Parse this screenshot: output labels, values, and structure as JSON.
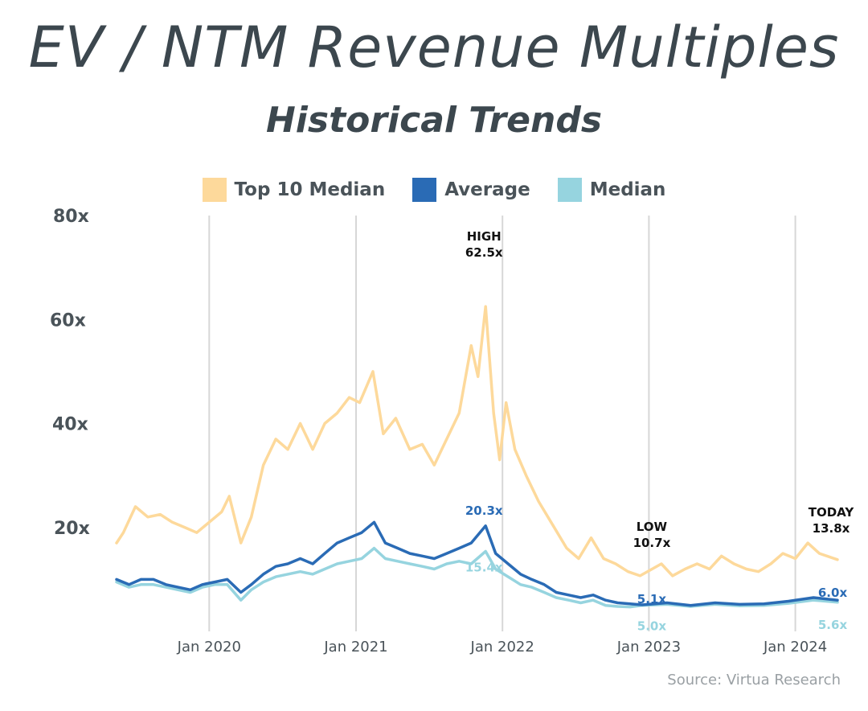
{
  "title": "EV / NTM Revenue Multiples",
  "subtitle": "Historical Trends",
  "source": "Source: Virtua Research",
  "legend": [
    {
      "label": "Top 10 Median",
      "color": "#fdd99b"
    },
    {
      "label": "Average",
      "color": "#2a6bb5"
    },
    {
      "label": "Median",
      "color": "#96d4df"
    }
  ],
  "chart_data": {
    "type": "line",
    "ylim": [
      0,
      80
    ],
    "y_ticks": [
      {
        "value": 20,
        "label": "20x"
      },
      {
        "value": 40,
        "label": "40x"
      },
      {
        "value": 60,
        "label": "60x"
      },
      {
        "value": 80,
        "label": "80x"
      }
    ],
    "x_ticks": [
      "Jan 2020",
      "Jan 2021",
      "Jan 2022",
      "Jan 2023",
      "Jan 2024"
    ],
    "x_range": [
      "2019-05-15",
      "2024-04-15"
    ],
    "grid": "vertical",
    "series": [
      {
        "name": "Top 10 Median",
        "color": "#fdd99b",
        "points": [
          [
            "2019-05-15",
            17
          ],
          [
            "2019-06-01",
            19
          ],
          [
            "2019-07-01",
            24
          ],
          [
            "2019-08-01",
            22
          ],
          [
            "2019-09-01",
            22.5
          ],
          [
            "2019-10-01",
            21
          ],
          [
            "2019-11-01",
            20
          ],
          [
            "2019-12-01",
            19
          ],
          [
            "2020-01-01",
            21
          ],
          [
            "2020-02-01",
            23
          ],
          [
            "2020-02-20",
            26
          ],
          [
            "2020-03-20",
            17
          ],
          [
            "2020-04-15",
            22
          ],
          [
            "2020-05-15",
            32
          ],
          [
            "2020-06-15",
            37
          ],
          [
            "2020-07-15",
            35
          ],
          [
            "2020-08-15",
            40
          ],
          [
            "2020-09-15",
            35
          ],
          [
            "2020-10-15",
            40
          ],
          [
            "2020-11-15",
            42
          ],
          [
            "2020-12-15",
            45
          ],
          [
            "2021-01-10",
            44
          ],
          [
            "2021-02-12",
            50
          ],
          [
            "2021-03-10",
            38
          ],
          [
            "2021-04-10",
            41
          ],
          [
            "2021-05-15",
            35
          ],
          [
            "2021-06-15",
            36
          ],
          [
            "2021-07-15",
            32
          ],
          [
            "2021-08-15",
            37
          ],
          [
            "2021-09-15",
            42
          ],
          [
            "2021-10-15",
            55
          ],
          [
            "2021-11-01",
            49
          ],
          [
            "2021-11-20",
            62.5
          ],
          [
            "2021-12-10",
            42
          ],
          [
            "2021-12-25",
            33
          ],
          [
            "2022-01-10",
            44
          ],
          [
            "2022-02-01",
            35
          ],
          [
            "2022-03-01",
            30
          ],
          [
            "2022-04-01",
            25
          ],
          [
            "2022-05-10",
            20
          ],
          [
            "2022-06-10",
            16
          ],
          [
            "2022-07-10",
            14
          ],
          [
            "2022-08-10",
            18
          ],
          [
            "2022-09-10",
            14
          ],
          [
            "2022-10-10",
            13
          ],
          [
            "2022-11-10",
            11.5
          ],
          [
            "2022-12-10",
            10.7
          ],
          [
            "2023-02-01",
            13
          ],
          [
            "2023-03-01",
            10.7
          ],
          [
            "2023-04-01",
            12
          ],
          [
            "2023-05-01",
            13
          ],
          [
            "2023-06-01",
            12
          ],
          [
            "2023-07-01",
            14.5
          ],
          [
            "2023-08-01",
            13
          ],
          [
            "2023-09-01",
            12
          ],
          [
            "2023-10-01",
            11.5
          ],
          [
            "2023-11-01",
            13
          ],
          [
            "2023-12-01",
            15
          ],
          [
            "2024-01-01",
            14
          ],
          [
            "2024-02-01",
            17
          ],
          [
            "2024-03-01",
            15
          ],
          [
            "2024-04-15",
            13.8
          ]
        ]
      },
      {
        "name": "Average",
        "color": "#2a6bb5",
        "points": [
          [
            "2019-05-15",
            10
          ],
          [
            "2019-06-15",
            9
          ],
          [
            "2019-07-15",
            10
          ],
          [
            "2019-08-15",
            10
          ],
          [
            "2019-09-15",
            9
          ],
          [
            "2019-10-15",
            8.5
          ],
          [
            "2019-11-15",
            8
          ],
          [
            "2019-12-15",
            9
          ],
          [
            "2020-01-15",
            9.5
          ],
          [
            "2020-02-15",
            10
          ],
          [
            "2020-03-20",
            7.5
          ],
          [
            "2020-04-15",
            9
          ],
          [
            "2020-05-15",
            11
          ],
          [
            "2020-06-15",
            12.5
          ],
          [
            "2020-07-15",
            13
          ],
          [
            "2020-08-15",
            14
          ],
          [
            "2020-09-15",
            13
          ],
          [
            "2020-10-15",
            15
          ],
          [
            "2020-11-15",
            17
          ],
          [
            "2020-12-15",
            18
          ],
          [
            "2021-01-15",
            19
          ],
          [
            "2021-02-15",
            21
          ],
          [
            "2021-03-15",
            17
          ],
          [
            "2021-04-15",
            16
          ],
          [
            "2021-05-15",
            15
          ],
          [
            "2021-06-15",
            14.5
          ],
          [
            "2021-07-15",
            14
          ],
          [
            "2021-08-15",
            15
          ],
          [
            "2021-09-15",
            16
          ],
          [
            "2021-10-15",
            17
          ],
          [
            "2021-11-20",
            20.3
          ],
          [
            "2021-12-15",
            15
          ],
          [
            "2022-01-15",
            13
          ],
          [
            "2022-02-15",
            11
          ],
          [
            "2022-03-15",
            10
          ],
          [
            "2022-04-15",
            9
          ],
          [
            "2022-05-15",
            7.5
          ],
          [
            "2022-06-15",
            7
          ],
          [
            "2022-07-15",
            6.5
          ],
          [
            "2022-08-15",
            7
          ],
          [
            "2022-09-15",
            6
          ],
          [
            "2022-10-15",
            5.5
          ],
          [
            "2022-11-15",
            5.3
          ],
          [
            "2022-12-15",
            5.1
          ],
          [
            "2023-02-15",
            5.5
          ],
          [
            "2023-04-15",
            5
          ],
          [
            "2023-06-15",
            5.5
          ],
          [
            "2023-08-15",
            5.2
          ],
          [
            "2023-10-15",
            5.3
          ],
          [
            "2023-12-15",
            5.8
          ],
          [
            "2024-02-15",
            6.5
          ],
          [
            "2024-04-15",
            6.0
          ]
        ]
      },
      {
        "name": "Median",
        "color": "#96d4df",
        "points": [
          [
            "2019-05-15",
            9.5
          ],
          [
            "2019-06-15",
            8.5
          ],
          [
            "2019-07-15",
            9
          ],
          [
            "2019-08-15",
            9
          ],
          [
            "2019-09-15",
            8.5
          ],
          [
            "2019-10-15",
            8
          ],
          [
            "2019-11-15",
            7.5
          ],
          [
            "2019-12-15",
            8.5
          ],
          [
            "2020-01-15",
            9
          ],
          [
            "2020-02-15",
            9
          ],
          [
            "2020-03-20",
            6
          ],
          [
            "2020-04-15",
            8
          ],
          [
            "2020-05-15",
            9.5
          ],
          [
            "2020-06-15",
            10.5
          ],
          [
            "2020-07-15",
            11
          ],
          [
            "2020-08-15",
            11.5
          ],
          [
            "2020-09-15",
            11
          ],
          [
            "2020-10-15",
            12
          ],
          [
            "2020-11-15",
            13
          ],
          [
            "2020-12-15",
            13.5
          ],
          [
            "2021-01-15",
            14
          ],
          [
            "2021-02-15",
            16
          ],
          [
            "2021-03-15",
            14
          ],
          [
            "2021-04-15",
            13.5
          ],
          [
            "2021-05-15",
            13
          ],
          [
            "2021-06-15",
            12.5
          ],
          [
            "2021-07-15",
            12
          ],
          [
            "2021-08-15",
            13
          ],
          [
            "2021-09-15",
            13.5
          ],
          [
            "2021-10-15",
            13
          ],
          [
            "2021-11-20",
            15.4
          ],
          [
            "2021-12-15",
            12
          ],
          [
            "2022-01-15",
            10.5
          ],
          [
            "2022-02-15",
            9
          ],
          [
            "2022-03-15",
            8.5
          ],
          [
            "2022-04-15",
            7.5
          ],
          [
            "2022-05-15",
            6.5
          ],
          [
            "2022-06-15",
            6
          ],
          [
            "2022-07-15",
            5.5
          ],
          [
            "2022-08-15",
            6
          ],
          [
            "2022-09-15",
            5
          ],
          [
            "2022-10-15",
            4.8
          ],
          [
            "2022-11-15",
            4.7
          ],
          [
            "2022-12-15",
            5.0
          ],
          [
            "2023-02-15",
            5.2
          ],
          [
            "2023-04-15",
            4.8
          ],
          [
            "2023-06-15",
            5.2
          ],
          [
            "2023-08-15",
            4.9
          ],
          [
            "2023-10-15",
            5
          ],
          [
            "2023-12-15",
            5.4
          ],
          [
            "2024-02-15",
            6
          ],
          [
            "2024-04-15",
            5.6
          ]
        ]
      }
    ],
    "annotations": [
      {
        "date": "2021-11-20",
        "value": 62.5,
        "lines": [
          "HIGH",
          "62.5x"
        ],
        "color": "#111111"
      },
      {
        "date": "2021-11-20",
        "value": 20.3,
        "lines": [
          "20.3x"
        ],
        "color": "#2a6bb5"
      },
      {
        "date": "2021-11-20",
        "value": 15.4,
        "lines": [
          "15.4x"
        ],
        "color": "#96d4df"
      },
      {
        "date": "2022-12-15",
        "value": 10.7,
        "lines": [
          "LOW",
          "10.7x"
        ],
        "color": "#111111"
      },
      {
        "date": "2022-12-15",
        "value": 5.1,
        "lines": [
          "5.1x"
        ],
        "color": "#2a6bb5"
      },
      {
        "date": "2022-12-15",
        "value": 5.0,
        "lines": [
          "5.0x"
        ],
        "color": "#96d4df"
      },
      {
        "date": "2024-04-15",
        "value": 13.8,
        "lines": [
          "TODAY",
          "13.8x"
        ],
        "color": "#111111"
      },
      {
        "date": "2024-04-15",
        "value": 6.0,
        "lines": [
          "6.0x"
        ],
        "color": "#2a6bb5"
      },
      {
        "date": "2024-04-15",
        "value": 5.6,
        "lines": [
          "5.6x"
        ],
        "color": "#96d4df"
      }
    ]
  }
}
